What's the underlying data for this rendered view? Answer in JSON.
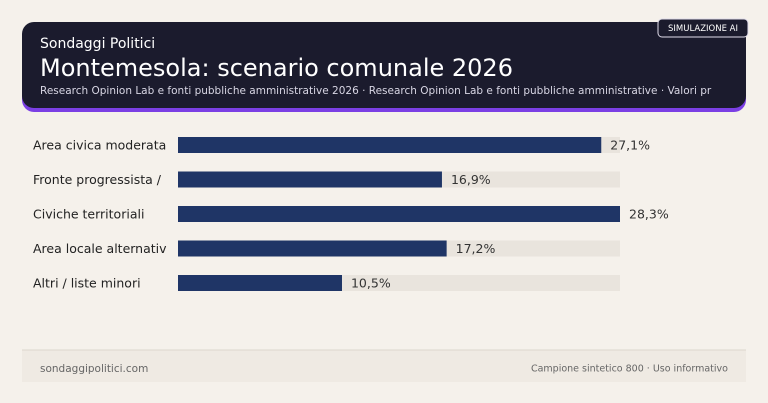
{
  "header": {
    "kicker": "Sondaggi Politici",
    "badge": "SIMULAZIONE AI"
  },
  "chart_data": {
    "type": "bar",
    "orientation": "horizontal",
    "title": "Montemesola: scenario comunale 2026",
    "subtitle": "Research Opinion Lab e fonti pubbliche amministrative 2026 · Research Opinion Lab e fonti pubbliche amministrative · Valori pr",
    "categories": [
      "Area civica moderata",
      "Fronte progressista /",
      "Civiche territoriali",
      "Area locale alternativ",
      "Altri / liste minori"
    ],
    "values": [
      27.1,
      16.9,
      28.3,
      17.2,
      10.5
    ],
    "value_labels": [
      "27,1%",
      "16,9%",
      "28,3%",
      "17,2%",
      "10,5%"
    ],
    "color": "#1f3566",
    "xlim": [
      0,
      28.3
    ]
  },
  "footer": {
    "left": "sondaggipolitici.com",
    "right": "Campione sintetico 800 · Uso informativo"
  }
}
